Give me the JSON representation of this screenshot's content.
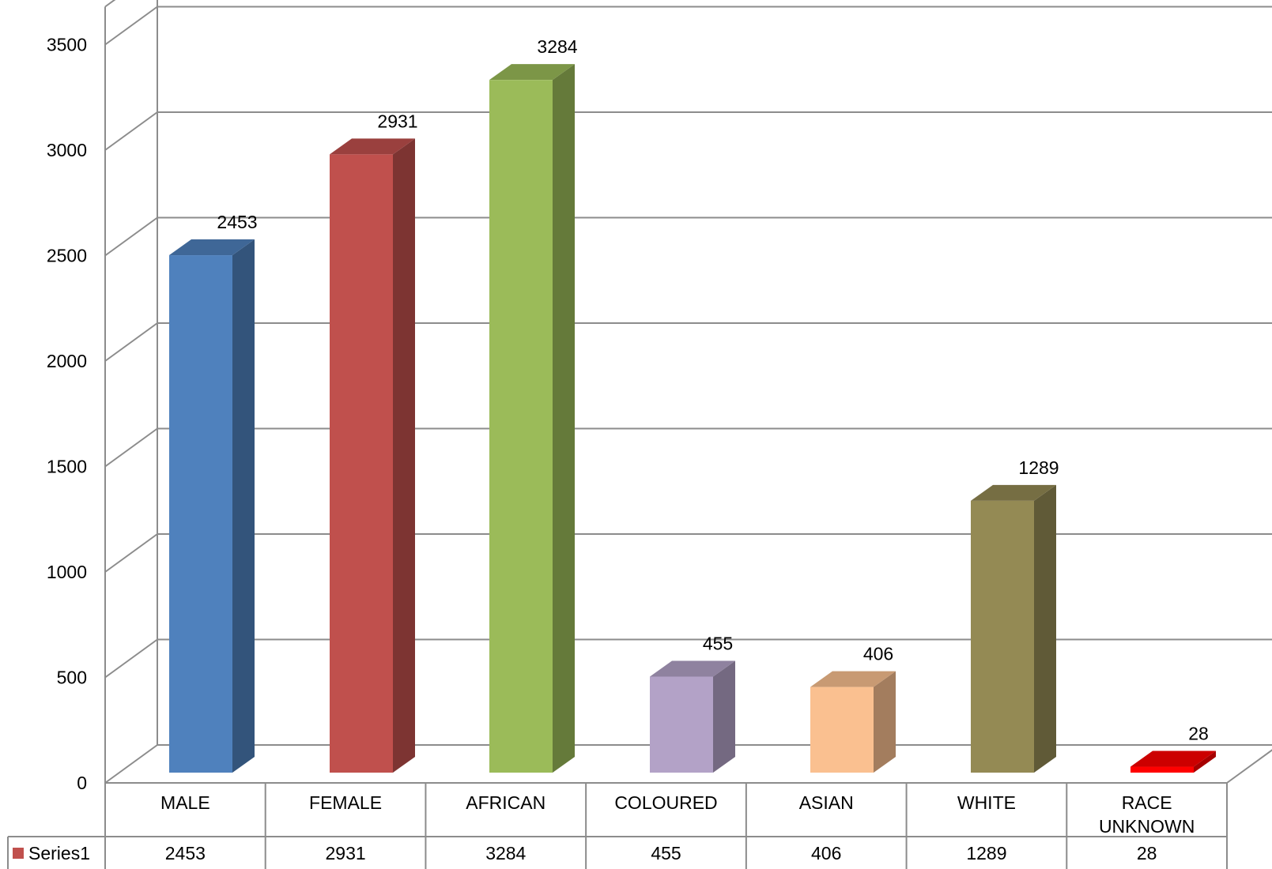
{
  "chart_data": {
    "type": "bar",
    "style": "3d-column",
    "categories": [
      "MALE",
      "FEMALE",
      "AFRICAN",
      "COLOURED",
      "ASIAN",
      "WHITE",
      "RACE UNKNOWN"
    ],
    "series": [
      {
        "name": "Series1",
        "values": [
          2453,
          2931,
          3284,
          455,
          406,
          1289,
          28
        ]
      }
    ],
    "bar_colors": [
      "#4F81BD",
      "#C0504D",
      "#9BBB59",
      "#B3A2C7",
      "#FAC090",
      "#948A54",
      "#FF0000"
    ],
    "ylim": [
      0,
      3500
    ],
    "yticks": [
      0,
      500,
      1000,
      1500,
      2000,
      2500,
      3000,
      3500
    ],
    "grid": true,
    "data_table": true,
    "legend": "data-table-left",
    "title": "",
    "xlabel": "",
    "ylabel": ""
  }
}
